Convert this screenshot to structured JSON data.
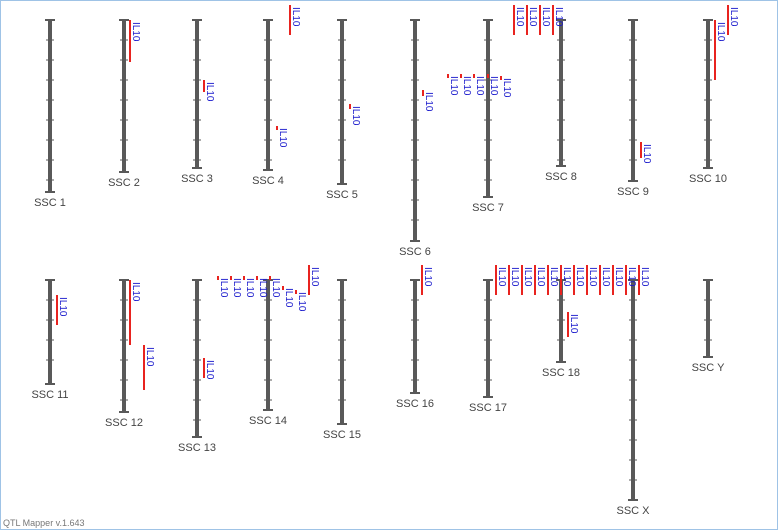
{
  "chromosomes": [
    {
      "label": "SSC 1",
      "qtls": []
    },
    {
      "label": "SSC 2",
      "qtls": [
        "IL10"
      ]
    },
    {
      "label": "SSC 3",
      "qtls": [
        "IL10"
      ]
    },
    {
      "label": "SSC 4",
      "qtls": [
        "IL10",
        "IL10"
      ]
    },
    {
      "label": "SSC 5",
      "qtls": [
        "IL10"
      ]
    },
    {
      "label": "SSC 6",
      "qtls": [
        "IL10"
      ]
    },
    {
      "label": "SSC 7",
      "qtls": [
        "IL10",
        "IL10",
        "IL10",
        "IL10",
        "IL10"
      ]
    },
    {
      "label": "SSC 8",
      "qtls": [
        "IL10",
        "IL10",
        "IL10",
        "IL10"
      ]
    },
    {
      "label": "SSC 9",
      "qtls": [
        "IL10"
      ]
    },
    {
      "label": "SSC 10",
      "qtls": [
        "IL10",
        "IL10"
      ]
    },
    {
      "label": "SSC 11",
      "qtls": [
        "IL10"
      ]
    },
    {
      "label": "SSC 12",
      "qtls": [
        "IL10",
        "IL10"
      ]
    },
    {
      "label": "SSC 13",
      "qtls": [
        "IL10"
      ]
    },
    {
      "label": "SSC 14",
      "qtls": [
        "IL10",
        "IL10",
        "IL10",
        "IL10",
        "IL10",
        "IL10",
        "IL10",
        "IL10"
      ]
    },
    {
      "label": "SSC 15",
      "qtls": []
    },
    {
      "label": "SSC 16",
      "qtls": [
        "IL10"
      ]
    },
    {
      "label": "SSC 17",
      "qtls": [
        "IL10",
        "IL10",
        "IL10",
        "IL10",
        "IL10"
      ]
    },
    {
      "label": "SSC 18",
      "qtls": [
        "IL10",
        "IL10",
        "IL10",
        "IL10",
        "IL10"
      ]
    },
    {
      "label": "SSC X",
      "qtls": [
        "IL10",
        "IL10",
        "IL10"
      ]
    },
    {
      "label": "SSC Y",
      "qtls": []
    }
  ],
  "footer": "QTL Mapper v.1.643"
}
